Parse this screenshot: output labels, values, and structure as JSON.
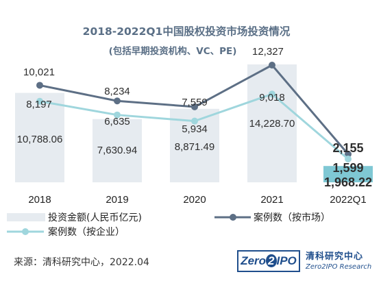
{
  "chart_data": {
    "type": "bar+line",
    "title": "2018-2022Q1中国股权投资市场投资情况",
    "subtitle": "(包括早期投资机构、VC、PE)",
    "categories": [
      "2018",
      "2019",
      "2020",
      "2021",
      "2022Q1"
    ],
    "bar_series": {
      "name": "投资金额(人民币亿元)",
      "values": [
        10788.06,
        7630.94,
        8871.49,
        14228.7,
        1968.22
      ],
      "labels": [
        "10,788.06",
        "7,630.94",
        "8,871.49",
        "14,228.70",
        "1,968.22"
      ],
      "color": "#e6ebf0",
      "last_color": "#7fc8d4"
    },
    "line_series": [
      {
        "name": "案例数（按市场）",
        "values": [
          10021,
          8234,
          7559,
          12327,
          2155
        ],
        "labels": [
          "10,021",
          "8,234",
          "7,559",
          "12,327",
          "2,155"
        ],
        "color": "#5d6f85"
      },
      {
        "name": "案例数（按企业）",
        "values": [
          8197,
          6635,
          5934,
          9018,
          1599
        ],
        "labels": [
          "8,197",
          "6,635",
          "5,934",
          "9,018",
          "1,599"
        ],
        "color": "#9fd6dd"
      }
    ],
    "grid": false,
    "legend_position": "bottom"
  },
  "footer": {
    "source": "来源：清科研究中心，2022.04",
    "logo_text_a": "Zero",
    "logo_text_b": "2",
    "logo_text_c": "IPO",
    "brand_cn": "清科研究中心",
    "brand_en": "Zero2IPO Research"
  }
}
